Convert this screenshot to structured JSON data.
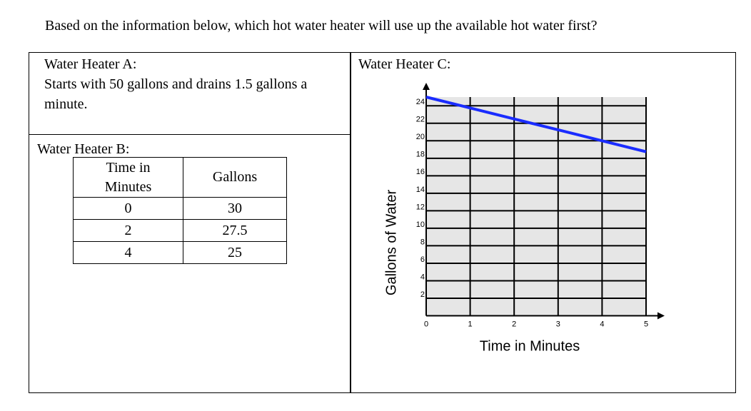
{
  "question": "Based on the information below, which hot water heater will use up the available hot water first?",
  "heater_a": {
    "title": "Water Heater A:",
    "text": "Starts with 50 gallons and drains 1.5 gallons a minute."
  },
  "heater_b": {
    "title": "Water Heater B:",
    "table": {
      "header": [
        "Time in Minutes",
        "Gallons"
      ],
      "rows": [
        [
          0,
          30
        ],
        [
          2,
          27.5
        ],
        [
          4,
          25
        ]
      ]
    }
  },
  "heater_c": {
    "title": "Water Heater C:"
  },
  "chart_data": {
    "type": "line",
    "x_label": "Time in Minutes",
    "y_label": "Gallons of Water",
    "x": [
      0,
      1,
      2,
      3,
      4,
      5
    ],
    "series": [
      {
        "color": "#1a2cff",
        "values": [
          25,
          23.75,
          22.5,
          21.25,
          20,
          18.75
        ]
      }
    ],
    "xlim": [
      0,
      5
    ],
    "ylim": [
      0,
      25
    ],
    "xticks": [
      0,
      1,
      2,
      3,
      4,
      5
    ],
    "yticks": [
      2,
      4,
      6,
      8,
      10,
      12,
      14,
      16,
      18,
      20,
      22,
      24
    ],
    "grid": true
  }
}
